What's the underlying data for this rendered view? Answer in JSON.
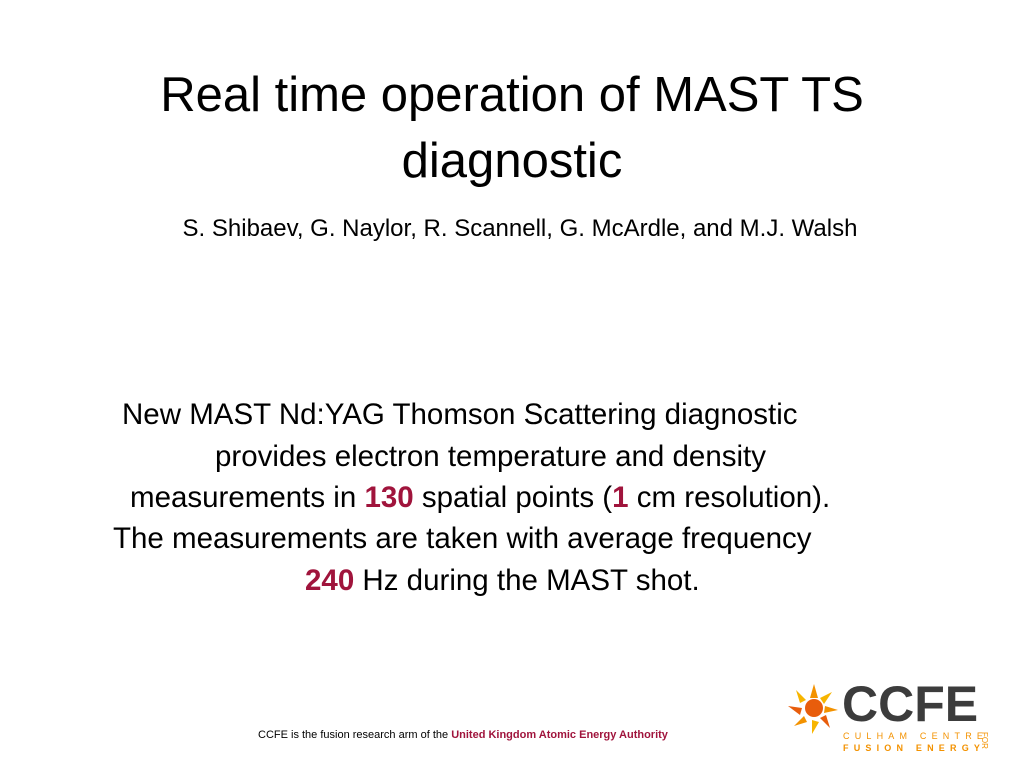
{
  "slide": {
    "title": "Real time operation of MAST TS diagnostic",
    "authors": "S. Shibaev, G. Naylor, R. Scannell, G. McArdle, and M.J. Walsh",
    "body_lines": [
      [
        "New MAST Nd:YAG Thomson Scattering diagnostic"
      ],
      [
        "provides electron temperature and density"
      ],
      [
        "measurements in ",
        "130",
        " spatial points (",
        "1",
        " cm resolution)."
      ],
      [
        "The measurements are taken with average frequency"
      ],
      [
        "240",
        " Hz during the MAST shot."
      ]
    ],
    "footer": [
      "CCFE is the fusion research arm of the ",
      "United Kingdom Atomic Energy Authority"
    ],
    "logo": {
      "name": "CCFE",
      "line1": "CULHAM CENTRE",
      "line2": "FUSION ENERGY",
      "side": "FOR"
    }
  }
}
